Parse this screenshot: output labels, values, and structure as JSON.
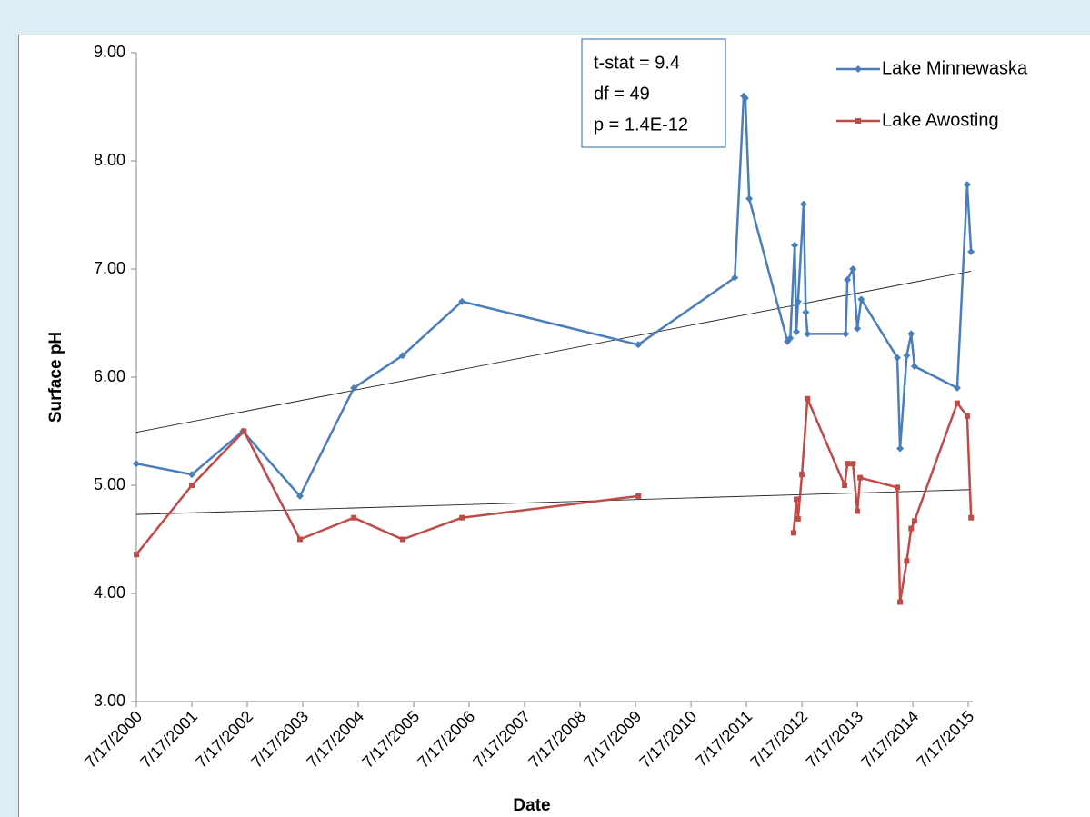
{
  "chart_data": {
    "type": "line",
    "xlabel": "Date",
    "ylabel": "Surface pH",
    "annotations": [
      "t-stat = 9.4",
      "df = 49",
      "p = 1.4E-12"
    ],
    "xlim": [
      2000.54,
      2015.62
    ],
    "ylim": [
      3,
      9
    ],
    "xticks": [
      {
        "value": 2000.54,
        "label": "7/17/2000"
      },
      {
        "value": 2001.54,
        "label": "7/17/2001"
      },
      {
        "value": 2002.54,
        "label": "7/17/2002"
      },
      {
        "value": 2003.54,
        "label": "7/17/2003"
      },
      {
        "value": 2004.54,
        "label": "7/17/2004"
      },
      {
        "value": 2005.54,
        "label": "7/17/2005"
      },
      {
        "value": 2006.54,
        "label": "7/17/2006"
      },
      {
        "value": 2007.54,
        "label": "7/17/2007"
      },
      {
        "value": 2008.54,
        "label": "7/17/2008"
      },
      {
        "value": 2009.54,
        "label": "7/17/2009"
      },
      {
        "value": 2010.54,
        "label": "7/17/2010"
      },
      {
        "value": 2011.54,
        "label": "7/17/2011"
      },
      {
        "value": 2012.54,
        "label": "7/17/2012"
      },
      {
        "value": 2013.54,
        "label": "7/17/2013"
      },
      {
        "value": 2014.54,
        "label": "7/17/2014"
      },
      {
        "value": 2015.54,
        "label": "7/17/2015"
      }
    ],
    "yticks": [
      {
        "value": 9,
        "label": "9.00"
      },
      {
        "value": 8,
        "label": "8.00"
      },
      {
        "value": 7,
        "label": "7.00"
      },
      {
        "value": 6,
        "label": "6.00"
      },
      {
        "value": 5,
        "label": "5.00"
      },
      {
        "value": 4,
        "label": "4.00"
      },
      {
        "value": 3,
        "label": "3.00"
      }
    ],
    "series": [
      {
        "name": "Lake Minnewaska",
        "color": "#4a7ebb",
        "marker": "diamond",
        "x": [
          2000.54,
          2001.54,
          2002.46,
          2003.49,
          2004.46,
          2005.34,
          2006.41,
          2009.59,
          2011.33,
          2011.49,
          2011.52,
          2011.59,
          2012.28,
          2012.33,
          2012.41,
          2012.44,
          2012.47,
          2012.57,
          2012.61,
          2012.64,
          2013.33,
          2013.36,
          2013.46,
          2013.54,
          2013.61,
          2014.26,
          2014.31,
          2014.43,
          2014.51,
          2014.57,
          2015.34,
          2015.52,
          2015.59
        ],
        "values": [
          5.2,
          5.1,
          5.5,
          4.9,
          5.9,
          6.2,
          6.7,
          6.3,
          6.92,
          8.6,
          8.58,
          7.65,
          6.33,
          6.36,
          7.22,
          6.42,
          6.7,
          7.6,
          6.6,
          6.4,
          6.4,
          6.9,
          7.0,
          6.45,
          6.72,
          6.18,
          5.34,
          6.2,
          6.4,
          6.1,
          5.9,
          7.78,
          7.16
        ],
        "trend": {
          "x": [
            2000.54,
            2015.59
          ],
          "values": [
            5.49,
            6.98
          ]
        }
      },
      {
        "name": "Lake Awosting",
        "color": "#be4b48",
        "marker": "square",
        "x": [
          2000.54,
          2001.54,
          2002.48,
          2003.49,
          2004.46,
          2005.34,
          2006.41,
          2009.59,
          null,
          2012.39,
          2012.44,
          2012.47,
          2012.54,
          2012.64,
          2013.31,
          2013.36,
          2013.46,
          2013.54,
          2013.59,
          2014.26,
          2014.31,
          2014.43,
          2014.51,
          2014.57,
          2015.34,
          2015.52,
          2015.59
        ],
        "values": [
          4.36,
          5.0,
          5.5,
          4.5,
          4.7,
          4.5,
          4.7,
          4.9,
          null,
          4.56,
          4.87,
          4.69,
          5.1,
          5.8,
          5.0,
          5.2,
          5.2,
          4.76,
          5.07,
          4.98,
          3.92,
          4.3,
          4.6,
          4.67,
          5.76,
          5.64,
          4.7
        ],
        "trend": {
          "x": [
            2000.54,
            2015.59
          ],
          "values": [
            4.73,
            4.96
          ]
        }
      }
    ]
  }
}
